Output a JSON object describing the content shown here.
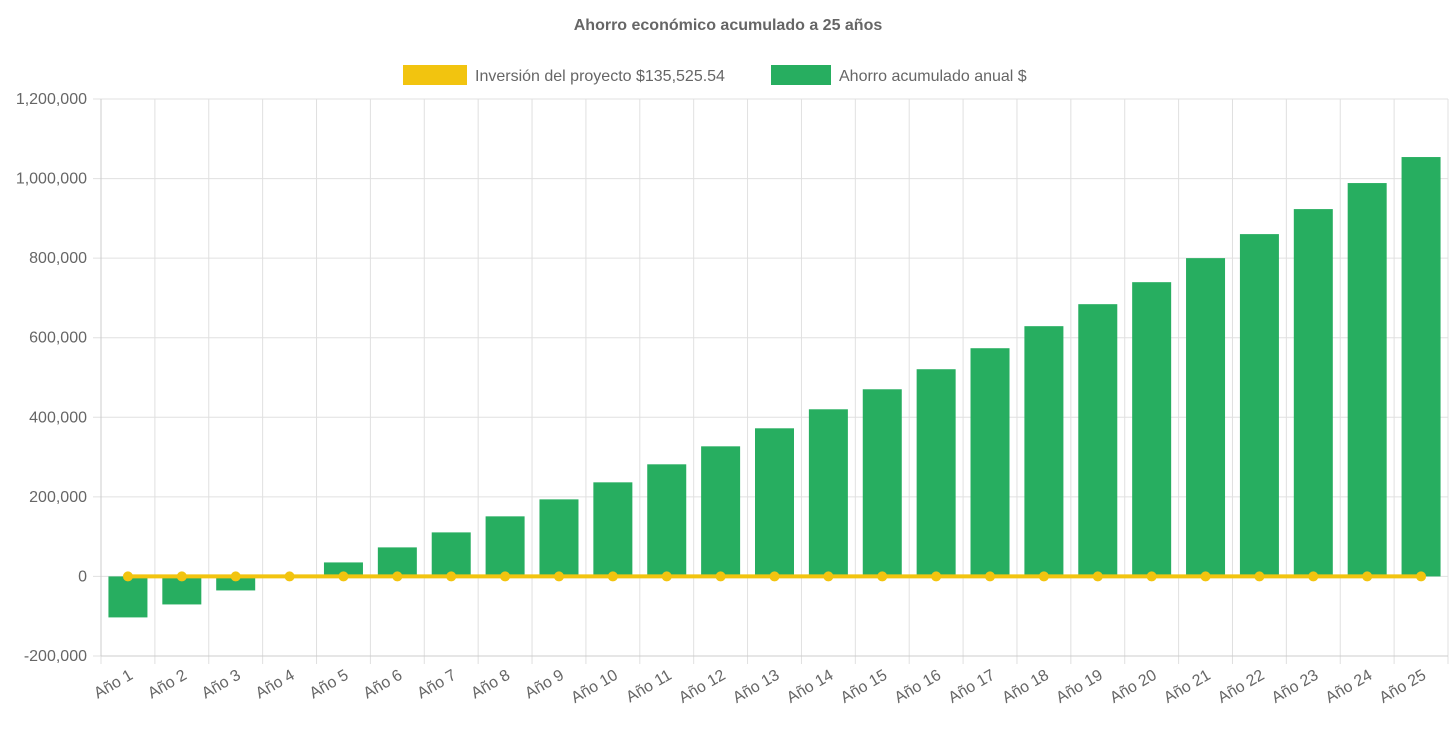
{
  "chart_data": {
    "type": "bar",
    "title": "Ahorro económico acumulado a 25 años",
    "xlabel": "",
    "ylabel": "",
    "ylim": [
      -200000,
      1200000
    ],
    "yticks": [
      -200000,
      0,
      200000,
      400000,
      600000,
      800000,
      1000000,
      1200000
    ],
    "ytick_labels": [
      "-200,000",
      "0",
      "200,000",
      "400,000",
      "600,000",
      "800,000",
      "1,000,000",
      "1,200,000"
    ],
    "grid": true,
    "legend_position": "top",
    "categories": [
      "Año 1",
      "Año 2",
      "Año 3",
      "Año 4",
      "Año 5",
      "Año 6",
      "Año 7",
      "Año 8",
      "Año 9",
      "Año 10",
      "Año 11",
      "Año 12",
      "Año 13",
      "Año 14",
      "Año 15",
      "Año 16",
      "Año 17",
      "Año 18",
      "Año 19",
      "Año 20",
      "Año 21",
      "Año 22",
      "Año 23",
      "Año 24",
      "Año 25"
    ],
    "series": [
      {
        "name": "Inversión del proyecto $135,525.54",
        "type": "line",
        "color": "#f2c40f",
        "values": [
          0,
          0,
          0,
          0,
          0,
          0,
          0,
          0,
          0,
          0,
          0,
          0,
          0,
          0,
          0,
          0,
          0,
          0,
          0,
          0,
          0,
          0,
          0,
          0,
          0
        ]
      },
      {
        "name": "Ahorro acumulado anual $",
        "type": "bar",
        "color": "#27ae60",
        "values": [
          -103000,
          -70400,
          -35200,
          0,
          35200,
          73000,
          110700,
          151000,
          193700,
          236500,
          281800,
          327000,
          372300,
          420100,
          470400,
          520800,
          573600,
          629000,
          684300,
          739600,
          800000,
          860400,
          923300,
          988700,
          1054100
        ]
      }
    ]
  }
}
